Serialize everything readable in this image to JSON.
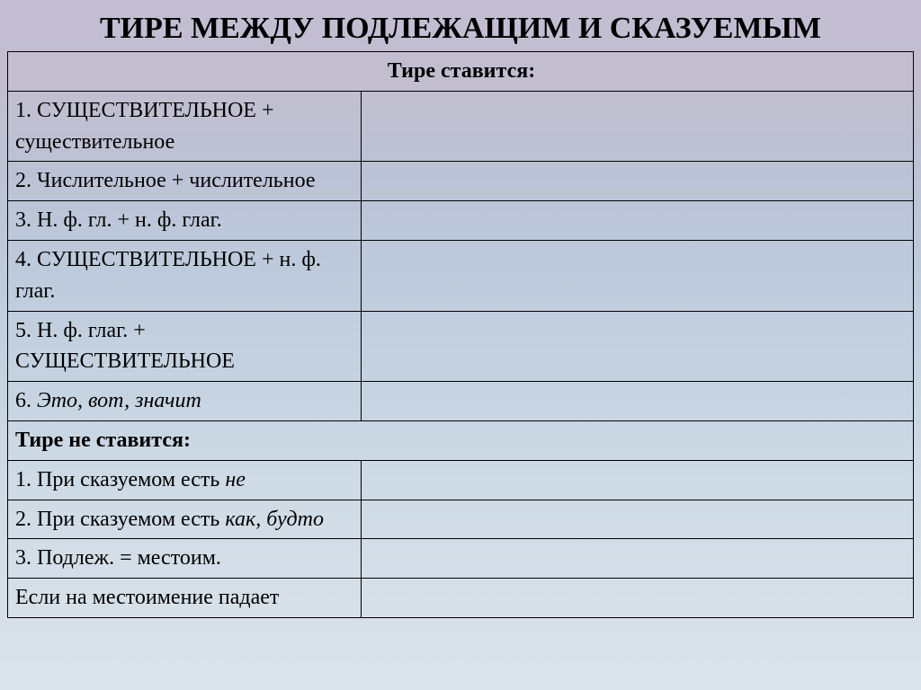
{
  "title": "ТИРЕ МЕЖДУ ПОДЛЕЖАЩИМ  И СКАЗУЕМЫМ",
  "section_yes": "Тире ставится:",
  "rows_yes": [
    {
      "num": "1.",
      "pre": " СУЩЕСТВИТЕЛЬНОЕ + существительное"
    },
    {
      "num": "2.",
      "pre": " Числительное + числительное"
    },
    {
      "num": "3.",
      "pre": " Н. ф. гл. + н. ф. глаг."
    },
    {
      "num": "4.",
      "pre": " СУЩЕСТВИТЕЛЬНОЕ + н. ф. глаг."
    },
    {
      "num": "5.",
      "pre": " Н. ф. глаг. + СУЩЕСТВИТЕЛЬНОЕ"
    },
    {
      "num": "6.",
      "ital": " Это, вот, значит"
    }
  ],
  "section_no": "Тире не ставится:",
  "rows_no": [
    {
      "num": "1.",
      "pre": " При сказуемом есть ",
      "ital": "не"
    },
    {
      "num": "2.",
      "pre": " При сказуемом есть ",
      "ital": "как, будто"
    },
    {
      "num": "3.",
      "pre": " Подлеж. = местоим."
    }
  ],
  "last": "Если на местоимение падает",
  "style": {
    "title_fontsize": 34,
    "cell_fontsize": 24,
    "border_color": "#000000",
    "text_color": "#000000",
    "background_gradient": [
      "#c3bdd3",
      "#bdcbdc",
      "#dbe3ea"
    ],
    "left_col_width_pct": 39,
    "slide_w": 1024,
    "slide_h": 768
  }
}
